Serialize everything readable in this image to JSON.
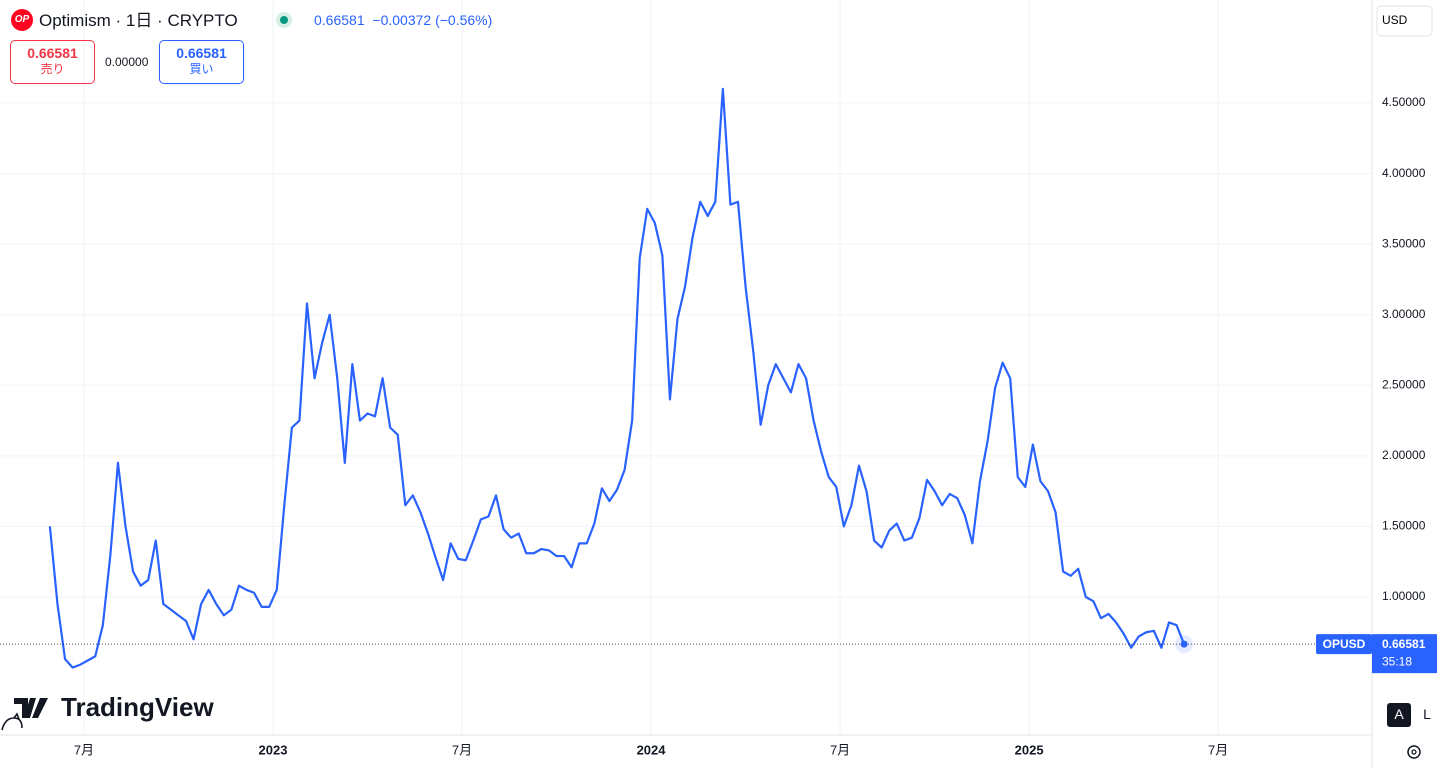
{
  "header": {
    "logo": "OP",
    "title": "Optimism · 1日 · CRYPTO",
    "price": "0.66581",
    "change": "−0.00372",
    "change_pct": "(−0.56%)",
    "sell_price": "0.66581",
    "sell_label": "売り",
    "spread": "0.00000",
    "buy_price": "0.66581",
    "buy_label": "買い"
  },
  "brand": "TradingView",
  "axis_buttons": [
    "A",
    "L"
  ],
  "chart_data": {
    "type": "line",
    "color": "#2962ff",
    "grid": true,
    "y_axis_label": "USD",
    "series_label": "OPUSD",
    "countdown": "35:18",
    "xlim": [
      2022.278,
      2025.907
    ],
    "ylim": [
      0.022,
      5.23
    ],
    "xticks": [
      {
        "value": 2022.5,
        "label": "7月"
      },
      2023,
      {
        "value": 2023.5,
        "label": "7月"
      },
      2024,
      {
        "value": 2024.5,
        "label": "7月"
      },
      2025,
      {
        "value": 2025.5,
        "label": "7月"
      }
    ],
    "yticks": [
      {
        "value": 1,
        "label": "1.00000"
      },
      {
        "value": 1.5,
        "label": "1.50000"
      },
      {
        "value": 2,
        "label": "2.00000"
      },
      {
        "value": 2.5,
        "label": "2.50000"
      },
      {
        "value": 3,
        "label": "3.00000"
      },
      {
        "value": 3.5,
        "label": "3.50000"
      },
      {
        "value": 4,
        "label": "4.00000"
      },
      {
        "value": 4.5,
        "label": "4.50000"
      }
    ],
    "x": [
      2022.41,
      2022.43,
      2022.45,
      2022.47,
      2022.49,
      2022.51,
      2022.53,
      2022.55,
      2022.57,
      2022.59,
      2022.61,
      2022.63,
      2022.65,
      2022.67,
      2022.69,
      2022.71,
      2022.73,
      2022.75,
      2022.77,
      2022.79,
      2022.81,
      2022.83,
      2022.85,
      2022.87,
      2022.89,
      2022.91,
      2022.93,
      2022.95,
      2022.97,
      2022.99,
      2023.01,
      2023.03,
      2023.05,
      2023.07,
      2023.09,
      2023.11,
      2023.13,
      2023.15,
      2023.17,
      2023.19,
      2023.21,
      2023.23,
      2023.25,
      2023.27,
      2023.29,
      2023.31,
      2023.33,
      2023.35,
      2023.37,
      2023.39,
      2023.41,
      2023.43,
      2023.45,
      2023.47,
      2023.49,
      2023.51,
      2023.53,
      2023.55,
      2023.57,
      2023.59,
      2023.61,
      2023.63,
      2023.65,
      2023.67,
      2023.69,
      2023.71,
      2023.73,
      2023.75,
      2023.77,
      2023.79,
      2023.81,
      2023.83,
      2023.85,
      2023.87,
      2023.89,
      2023.91,
      2023.93,
      2023.95,
      2023.97,
      2023.99,
      2024.01,
      2024.03,
      2024.05,
      2024.07,
      2024.09,
      2024.11,
      2024.13,
      2024.15,
      2024.17,
      2024.19,
      2024.21,
      2024.23,
      2024.25,
      2024.27,
      2024.29,
      2024.31,
      2024.33,
      2024.35,
      2024.37,
      2024.39,
      2024.41,
      2024.43,
      2024.45,
      2024.47,
      2024.49,
      2024.51,
      2024.53,
      2024.55,
      2024.57,
      2024.59,
      2024.61,
      2024.63,
      2024.65,
      2024.67,
      2024.69,
      2024.71,
      2024.73,
      2024.75,
      2024.77,
      2024.79,
      2024.81,
      2024.83,
      2024.85,
      2024.87,
      2024.89,
      2024.91,
      2024.93,
      2024.95,
      2024.97,
      2024.99,
      2025.01,
      2025.03,
      2025.05,
      2025.07,
      2025.09,
      2025.11,
      2025.13,
      2025.15,
      2025.17,
      2025.19,
      2025.21,
      2025.23,
      2025.25,
      2025.27,
      2025.29,
      2025.31,
      2025.33,
      2025.35,
      2025.37,
      2025.39,
      2025.41
    ],
    "values": [
      1.5,
      0.95,
      0.56,
      0.5,
      0.52,
      0.55,
      0.58,
      0.8,
      1.3,
      1.95,
      1.5,
      1.18,
      1.08,
      1.12,
      1.4,
      0.95,
      0.91,
      0.87,
      0.83,
      0.7,
      0.95,
      1.05,
      0.95,
      0.87,
      0.91,
      1.08,
      1.05,
      1.03,
      0.93,
      0.93,
      1.05,
      1.65,
      2.2,
      2.25,
      3.08,
      2.55,
      2.8,
      3.0,
      2.55,
      1.95,
      2.65,
      2.25,
      2.3,
      2.28,
      2.55,
      2.2,
      2.15,
      1.65,
      1.72,
      1.6,
      1.45,
      1.28,
      1.12,
      1.38,
      1.27,
      1.26,
      1.4,
      1.55,
      1.57,
      1.72,
      1.48,
      1.42,
      1.45,
      1.31,
      1.31,
      1.34,
      1.33,
      1.29,
      1.29,
      1.21,
      1.38,
      1.38,
      1.52,
      1.77,
      1.68,
      1.76,
      1.9,
      2.25,
      3.4,
      3.75,
      3.65,
      3.42,
      2.4,
      2.97,
      3.2,
      3.55,
      3.8,
      3.7,
      3.8,
      4.6,
      3.78,
      3.8,
      3.2,
      2.75,
      2.22,
      2.5,
      2.65,
      2.55,
      2.45,
      2.65,
      2.55,
      2.25,
      2.03,
      1.85,
      1.78,
      1.5,
      1.65,
      1.93,
      1.75,
      1.4,
      1.35,
      1.47,
      1.52,
      1.4,
      1.42,
      1.56,
      1.83,
      1.75,
      1.65,
      1.73,
      1.7,
      1.58,
      1.38,
      1.82,
      2.1,
      2.48,
      2.66,
      2.55,
      1.85,
      1.78,
      2.08,
      1.82,
      1.75,
      1.6,
      1.18,
      1.15,
      1.2,
      1.0,
      0.97,
      0.85,
      0.88,
      0.82,
      0.74,
      0.64,
      0.72,
      0.75,
      0.76,
      0.64,
      0.82,
      0.8,
      0.66581
    ]
  }
}
